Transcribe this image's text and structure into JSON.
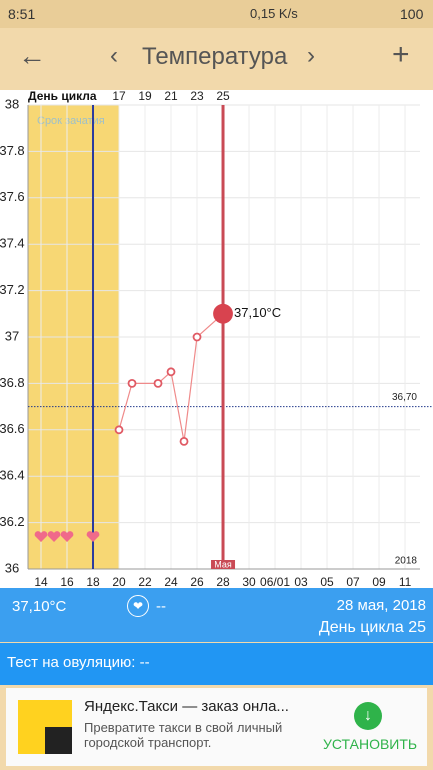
{
  "status_bar": {
    "time": "8:51",
    "speed": "0,15 K/s",
    "battery": "100"
  },
  "header": {
    "title": "Температура"
  },
  "chart_data": {
    "type": "line",
    "color": "#ef8a8a",
    "x": [
      20,
      21,
      23,
      24,
      25,
      26,
      28
    ],
    "values": [
      36.6,
      36.8,
      36.8,
      36.85,
      36.55,
      37.0,
      37.1
    ],
    "value_labels": [
      null,
      null,
      null,
      null,
      null,
      null,
      "37,10°C"
    ],
    "xlim": [
      13,
      43.15
    ],
    "xticks": [
      14,
      16,
      18,
      20,
      22,
      24,
      26,
      28,
      30,
      {
        "value": 32,
        "label": "06/01"
      },
      {
        "value": 34,
        "label": "03"
      },
      {
        "value": 36,
        "label": "05"
      },
      {
        "value": 38,
        "label": "07"
      },
      {
        "value": 40,
        "label": "09"
      },
      {
        "value": 42,
        "label": "11"
      }
    ],
    "x2_label": "День цикла",
    "x2lim": [
      10,
      40.15
    ],
    "x2ticks": [
      17,
      19,
      21,
      23,
      25
    ],
    "ylim": [
      36,
      38
    ],
    "yticks": [
      36,
      36.2,
      36.4,
      36.6,
      36.8,
      37,
      37.2,
      37.4,
      37.6,
      37.8,
      38
    ],
    "grid": true,
    "coverline": 36.7,
    "coverline_label": "36,70",
    "fertile_window": [
      13,
      20
    ],
    "fertile_label": "Срок зачатия",
    "ovulation_day": 18,
    "current_day": 28,
    "current_day_label": "Мая",
    "hearts": [
      14,
      15,
      16,
      18
    ],
    "year": "2018"
  },
  "info": {
    "temperature": "37,10°C",
    "mood": "--",
    "date": "28 мая, 2018",
    "cycle_day": "День цикла 25"
  },
  "test": {
    "label": "Тест на овуляцию: --"
  },
  "ad": {
    "title": "Яндекс.Такси — заказ онла...",
    "text": "Превратите такси в свой личный городской транспорт.",
    "button": "УСТАНОВИТЬ"
  }
}
